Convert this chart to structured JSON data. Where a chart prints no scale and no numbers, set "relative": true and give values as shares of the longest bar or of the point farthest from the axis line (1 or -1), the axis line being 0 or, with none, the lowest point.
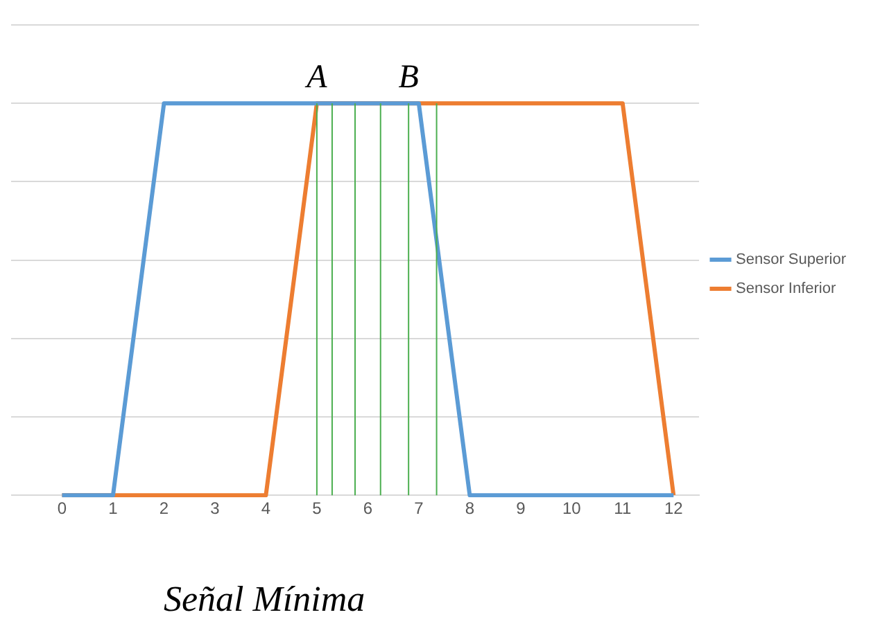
{
  "chart_data": {
    "type": "line",
    "relative": true,
    "xlim": [
      -1,
      12.5
    ],
    "xticks": [
      0,
      1,
      2,
      3,
      4,
      5,
      6,
      7,
      8,
      9,
      10,
      11,
      12
    ],
    "series": [
      {
        "name": "Sensor Superior",
        "color": "#5b9bd5",
        "x": [
          0,
          1,
          2,
          7,
          8,
          12
        ],
        "values": [
          0,
          0,
          1,
          1,
          0,
          0
        ]
      },
      {
        "name": "Sensor Inferior",
        "color": "#ed7d31",
        "x": [
          0,
          4,
          5,
          11,
          12
        ],
        "values": [
          0,
          0,
          1,
          1,
          0
        ]
      }
    ],
    "ref_lines": [
      {
        "axis": "x",
        "value": 5,
        "color": "#4caf50",
        "label": "A"
      },
      {
        "axis": "x",
        "value": 5.3,
        "color": "#4caf50"
      },
      {
        "axis": "x",
        "value": 5.75,
        "color": "#4caf50"
      },
      {
        "axis": "x",
        "value": 6.25,
        "color": "#4caf50"
      },
      {
        "axis": "x",
        "value": 6.8,
        "color": "#4caf50",
        "label": "B"
      },
      {
        "axis": "x",
        "value": 7.35,
        "color": "#4caf50"
      }
    ],
    "annotations": [
      "Señal Mínima"
    ],
    "grid": "y",
    "legend": "right",
    "marker": "none",
    "line_style": "solid"
  }
}
